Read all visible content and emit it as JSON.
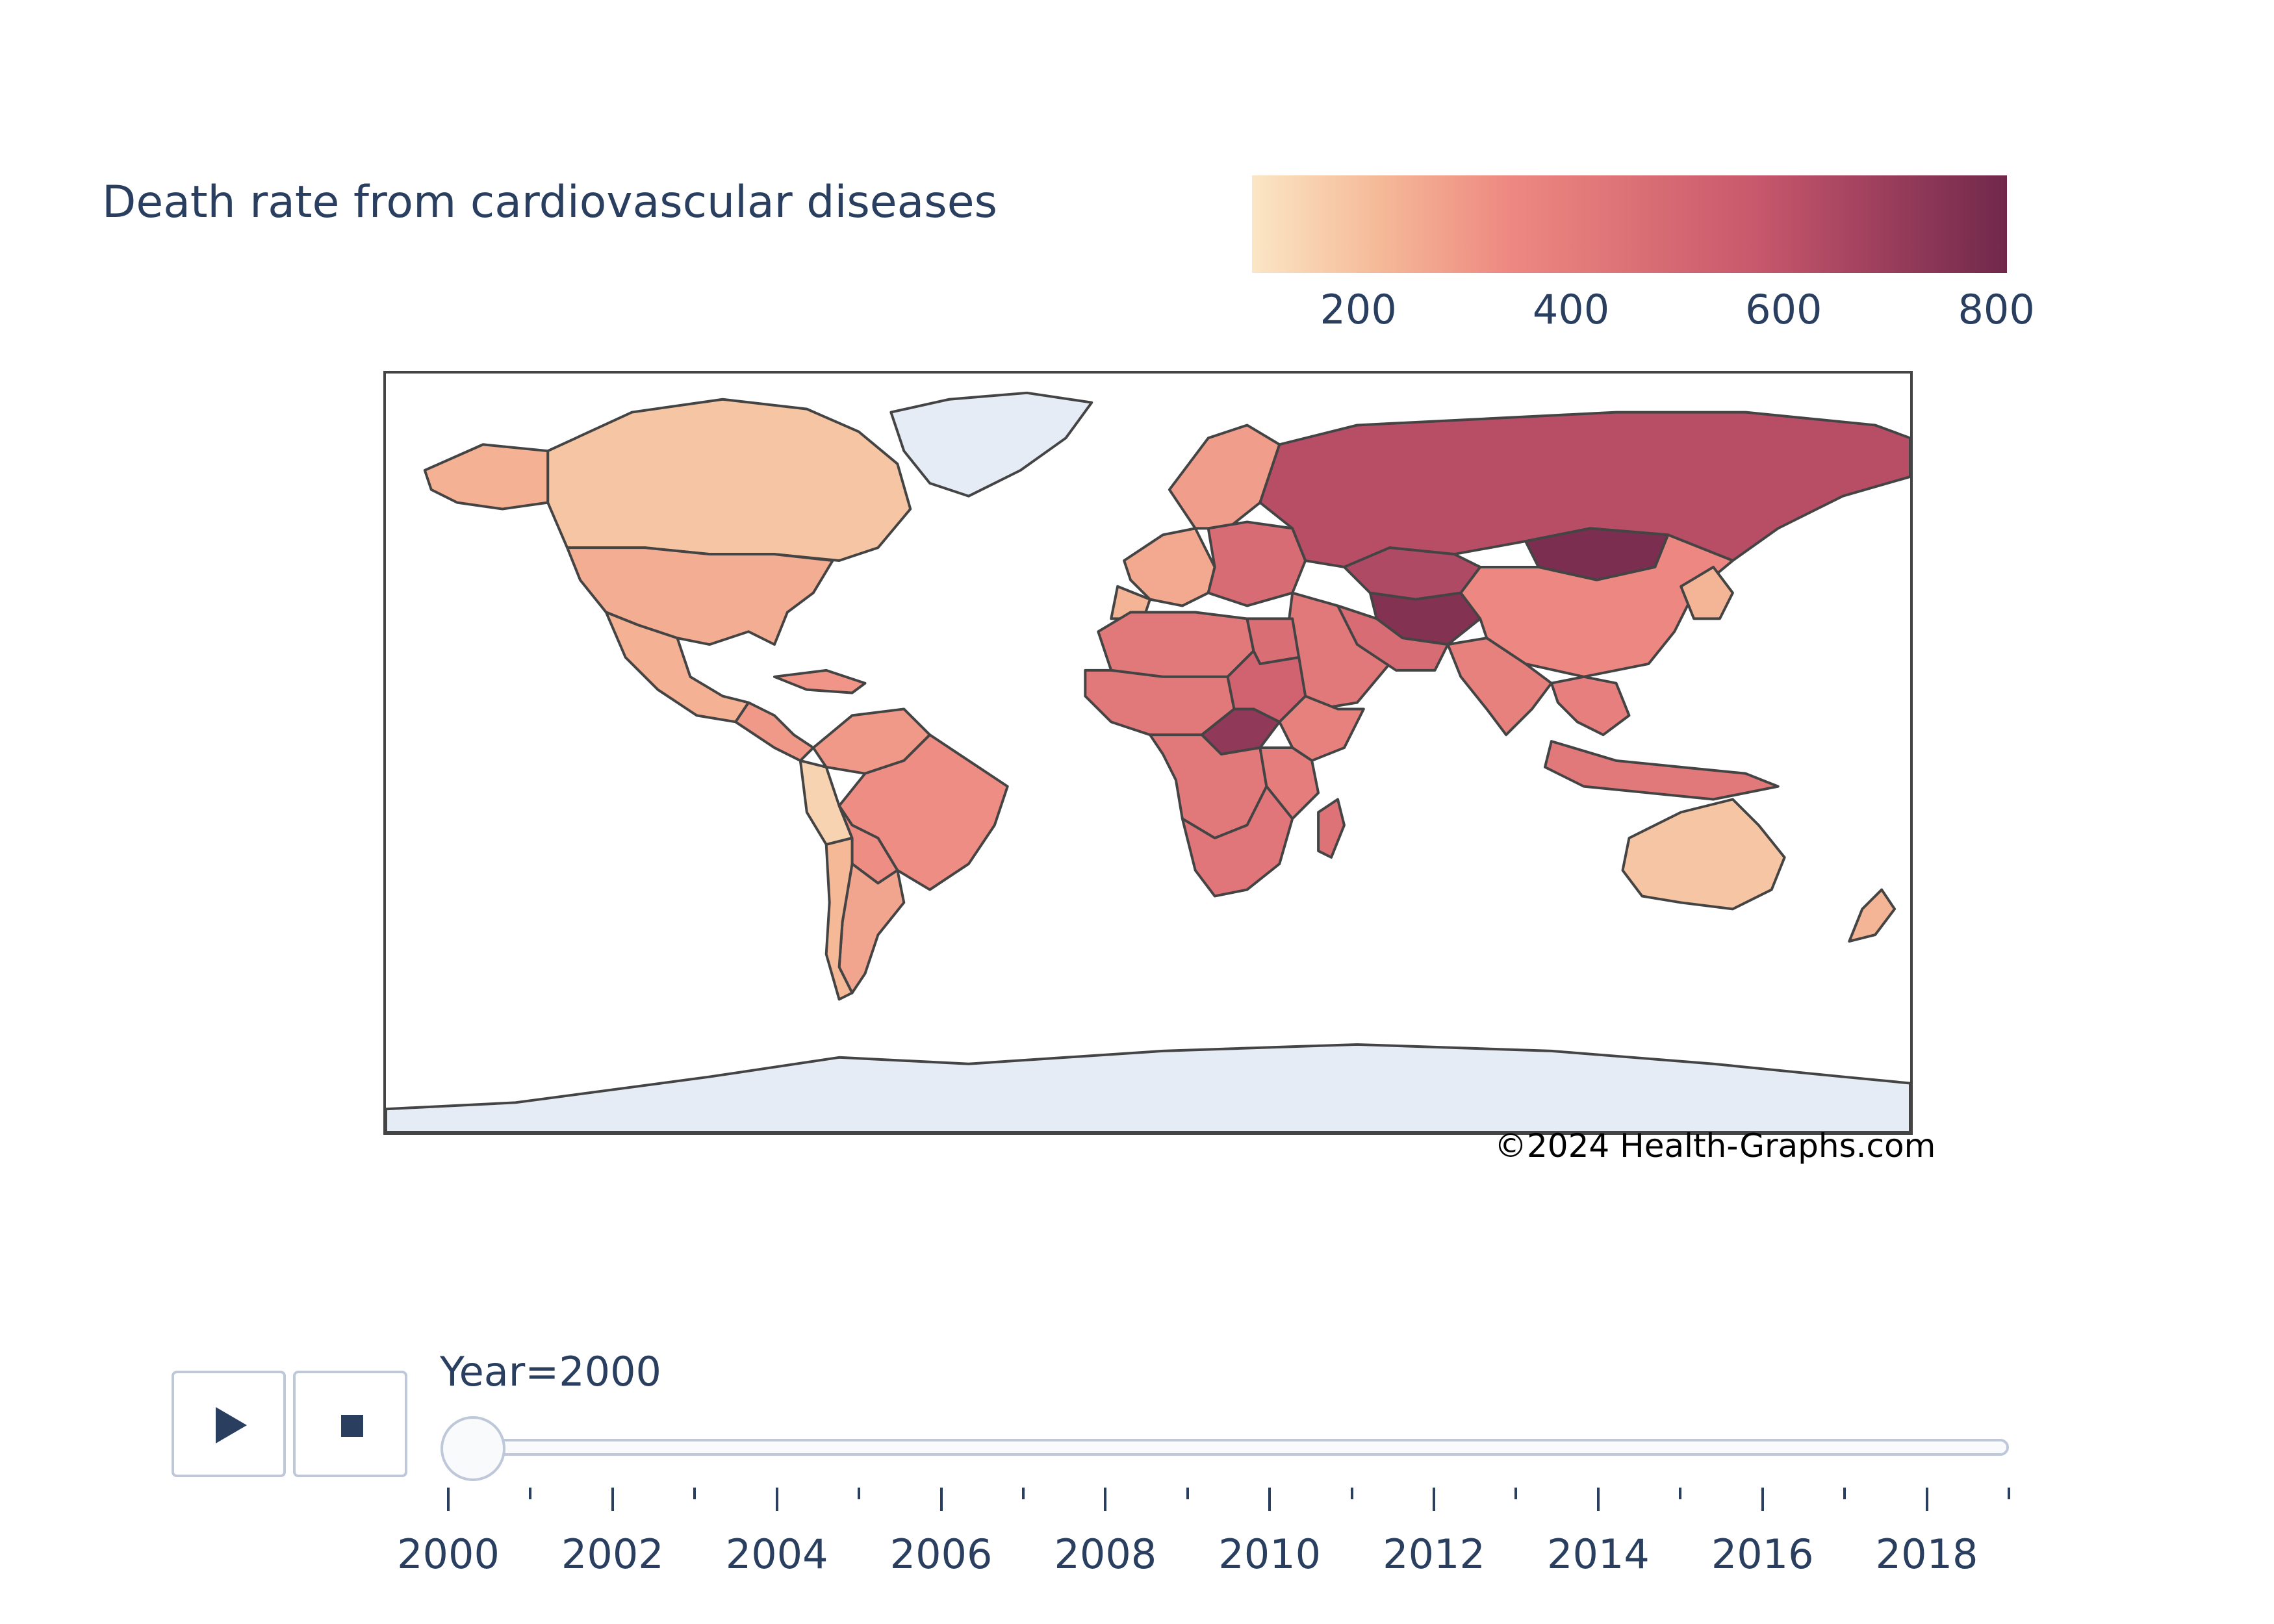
{
  "chart_title": "Death rate from cardiovascular diseases",
  "colorbar": {
    "ticks": [
      "200",
      "400",
      "600",
      "800"
    ],
    "tick_values": [
      200,
      400,
      600,
      800
    ],
    "range": [
      100,
      810
    ],
    "colorscale": [
      "#fbe6c5",
      "#f5ba98",
      "#ee8a82",
      "#dc7176",
      "#c8586c",
      "#9c3f5d",
      "#70284a"
    ]
  },
  "watermark": "©2024 Health-Graphs.com",
  "colors": {
    "land_no_data": "#e5ecf6",
    "border": "#444444",
    "text": "#2a3f5f",
    "slider_border": "#bec8d9"
  },
  "controls": {
    "play_icon": "play-icon",
    "stop_icon": "stop-icon"
  },
  "slider": {
    "current_label": "Year=2000",
    "current_value": 2000,
    "min": 2000,
    "max": 2019,
    "tick_labels": [
      "2000",
      "2002",
      "2004",
      "2006",
      "2008",
      "2010",
      "2012",
      "2014",
      "2016",
      "2018"
    ]
  },
  "chart_data": {
    "type": "choropleth",
    "title": "Death rate from cardiovascular diseases",
    "year": 2000,
    "colorbar_range": [
      100,
      810
    ],
    "regions": [
      {
        "name": "Canada",
        "value": 190
      },
      {
        "name": "Alaska (USA)",
        "value": 240
      },
      {
        "name": "United States",
        "value": 250
      },
      {
        "name": "Mexico",
        "value": 240
      },
      {
        "name": "Central America",
        "value": 300
      },
      {
        "name": "Caribbean",
        "value": 310
      },
      {
        "name": "Colombia / Venezuela",
        "value": 300
      },
      {
        "name": "Peru / Ecuador",
        "value": 150
      },
      {
        "name": "Brazil",
        "value": 330
      },
      {
        "name": "Bolivia / Paraguay",
        "value": 330
      },
      {
        "name": "Argentina",
        "value": 270
      },
      {
        "name": "Chile",
        "value": 220
      },
      {
        "name": "Greenland",
        "value": null
      },
      {
        "name": "Antarctica",
        "value": null
      },
      {
        "name": "Western Europe",
        "value": 260
      },
      {
        "name": "Iberia",
        "value": 230
      },
      {
        "name": "Scandinavia",
        "value": 290
      },
      {
        "name": "Eastern Europe",
        "value": 480
      },
      {
        "name": "Russia",
        "value": 620
      },
      {
        "name": "Kazakhstan",
        "value": 640
      },
      {
        "name": "Central Asia",
        "value": 760
      },
      {
        "name": "Mongolia",
        "value": 780
      },
      {
        "name": "China",
        "value": 350
      },
      {
        "name": "Japan / Korea",
        "value": 230
      },
      {
        "name": "India",
        "value": 380
      },
      {
        "name": "Middle East",
        "value": 420
      },
      {
        "name": "Iran / Afghanistan",
        "value": 480
      },
      {
        "name": "Southeast Asia",
        "value": 390
      },
      {
        "name": "Indonesia / PNG",
        "value": 420
      },
      {
        "name": "Australia",
        "value": 190
      },
      {
        "name": "New Zealand",
        "value": 230
      },
      {
        "name": "North Africa",
        "value": 420
      },
      {
        "name": "Egypt",
        "value": 470
      },
      {
        "name": "West Africa",
        "value": 420
      },
      {
        "name": "Sudan",
        "value": 520
      },
      {
        "name": "Central African Republic",
        "value": 720
      },
      {
        "name": "Horn of Africa",
        "value": 380
      },
      {
        "name": "Central Africa",
        "value": 420
      },
      {
        "name": "East Africa",
        "value": 400
      },
      {
        "name": "Southern Africa",
        "value": 430
      },
      {
        "name": "Madagascar",
        "value": 450
      }
    ]
  }
}
